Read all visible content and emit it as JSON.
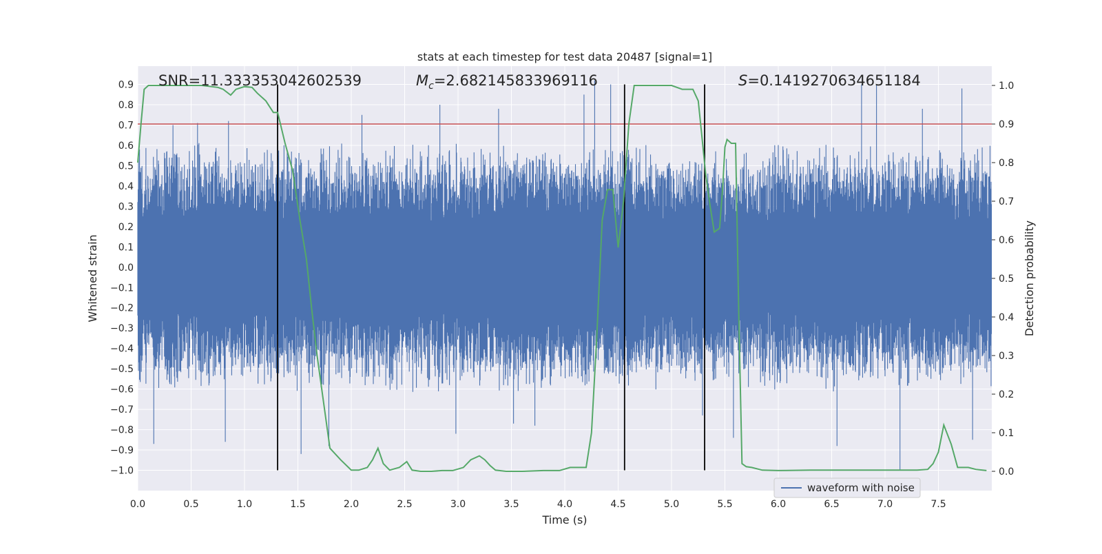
{
  "chart_data": {
    "type": "line",
    "title": "stats at each timestep for test data 20487 [signal=1]",
    "xlabel": "Time (s)",
    "ylabel_left": "Whitened strain",
    "ylabel_right": "Detection probability",
    "xlim": [
      0.0,
      8.0
    ],
    "ylim_left": [
      -1.1,
      0.99
    ],
    "ylim_right": [
      -0.05,
      1.05
    ],
    "x_ticks": [
      "0.0",
      "0.5",
      "1.0",
      "1.5",
      "2.0",
      "2.5",
      "3.0",
      "3.5",
      "4.0",
      "4.5",
      "5.0",
      "5.5",
      "6.0",
      "6.5",
      "7.0",
      "7.5"
    ],
    "y_left_ticks": [
      "0.9",
      "0.8",
      "0.7",
      "0.6",
      "0.5",
      "0.4",
      "0.3",
      "0.2",
      "0.1",
      "0.0",
      "−0.1",
      "−0.2",
      "−0.3",
      "−0.4",
      "−0.5",
      "−0.6",
      "−0.7",
      "−0.8",
      "−0.9",
      "−1.0"
    ],
    "y_right_ticks": [
      "1.0",
      "0.9",
      "0.8",
      "0.7",
      "0.6",
      "0.5",
      "0.4",
      "0.3",
      "0.2",
      "0.1",
      "0.0"
    ],
    "annotations": {
      "snr": "SNR=11.333353042602539",
      "mc_symbol": "M",
      "mc_sub": "c",
      "mc_value": "=2.682145833969116",
      "s_symbol": "S",
      "s_value": "=0.1419270634651184"
    },
    "legend": {
      "label": "waveform with noise",
      "placement": "lower right"
    },
    "grid": true,
    "colors": {
      "background": "#eaeaf2",
      "strain": "#4c72b0",
      "probability": "#55a868",
      "threshold": "#c44e52",
      "markers": "#000000",
      "grid": "#ffffff"
    },
    "threshold_probability": 0.9,
    "vertical_markers": [
      1.31,
      4.56,
      5.31
    ],
    "series": [
      {
        "name": "waveform with noise",
        "kind": "noise",
        "envelope_min": -1.0,
        "envelope_max": 0.9,
        "spikes": [
          {
            "t": 0.15,
            "v": -0.87
          },
          {
            "t": 0.33,
            "v": 0.7
          },
          {
            "t": 0.56,
            "v": 0.71
          },
          {
            "t": 0.82,
            "v": -0.86
          },
          {
            "t": 0.85,
            "v": 0.72
          },
          {
            "t": 1.31,
            "v": 0.71
          },
          {
            "t": 1.53,
            "v": -0.92
          },
          {
            "t": 1.79,
            "v": -0.88
          },
          {
            "t": 2.1,
            "v": 0.75
          },
          {
            "t": 2.83,
            "v": 0.8
          },
          {
            "t": 2.98,
            "v": -0.82
          },
          {
            "t": 3.38,
            "v": 0.78
          },
          {
            "t": 3.52,
            "v": -0.77
          },
          {
            "t": 3.72,
            "v": -0.78
          },
          {
            "t": 4.18,
            "v": 0.85
          },
          {
            "t": 4.28,
            "v": 0.92
          },
          {
            "t": 4.43,
            "v": 0.9
          },
          {
            "t": 5.29,
            "v": -0.73
          },
          {
            "t": 5.58,
            "v": -0.84
          },
          {
            "t": 6.55,
            "v": -0.88
          },
          {
            "t": 6.78,
            "v": 0.9
          },
          {
            "t": 6.92,
            "v": 0.9
          },
          {
            "t": 7.14,
            "v": -1.0
          },
          {
            "t": 7.35,
            "v": 0.78
          },
          {
            "t": 7.72,
            "v": 0.88
          },
          {
            "t": 7.82,
            "v": -0.85
          }
        ]
      },
      {
        "name": "",
        "kind": "probability",
        "x": [
          0.0,
          0.03,
          0.06,
          0.1,
          0.2,
          0.4,
          0.6,
          0.75,
          0.8,
          0.87,
          0.92,
          1.0,
          1.07,
          1.12,
          1.2,
          1.27,
          1.31,
          1.38,
          1.45,
          1.52,
          1.58,
          1.63,
          1.68,
          1.74,
          1.8,
          1.9,
          2.0,
          2.07,
          2.15,
          2.2,
          2.25,
          2.3,
          2.36,
          2.45,
          2.52,
          2.57,
          2.65,
          2.75,
          2.85,
          2.95,
          3.05,
          3.12,
          3.2,
          3.25,
          3.3,
          3.35,
          3.45,
          3.6,
          3.8,
          3.95,
          4.05,
          4.12,
          4.2,
          4.25,
          4.3,
          4.35,
          4.4,
          4.45,
          4.5,
          4.55,
          4.6,
          4.65,
          4.7,
          4.8,
          5.0,
          5.1,
          5.15,
          5.2,
          5.25,
          5.28,
          5.32,
          5.36,
          5.4,
          5.45,
          5.48,
          5.5,
          5.52,
          5.56,
          5.6,
          5.63,
          5.66,
          5.7,
          5.75,
          5.85,
          6.0,
          6.3,
          6.6,
          6.9,
          7.2,
          7.3,
          7.4,
          7.45,
          7.5,
          7.55,
          7.62,
          7.68,
          7.72,
          7.78,
          7.85,
          7.95
        ],
        "values": [
          0.8,
          0.9,
          0.99,
          1.0,
          1.0,
          1.0,
          1.0,
          0.995,
          0.99,
          0.975,
          0.99,
          0.997,
          0.995,
          0.98,
          0.96,
          0.93,
          0.93,
          0.85,
          0.78,
          0.65,
          0.55,
          0.42,
          0.3,
          0.18,
          0.06,
          0.03,
          0.003,
          0.003,
          0.01,
          0.03,
          0.06,
          0.02,
          0.003,
          0.01,
          0.025,
          0.003,
          0.0,
          0.0,
          0.002,
          0.002,
          0.01,
          0.03,
          0.04,
          0.03,
          0.015,
          0.003,
          0.0,
          0.0,
          0.002,
          0.002,
          0.01,
          0.01,
          0.01,
          0.1,
          0.35,
          0.65,
          0.73,
          0.73,
          0.58,
          0.7,
          0.9,
          1.0,
          1.0,
          1.0,
          1.0,
          0.99,
          0.99,
          0.99,
          0.96,
          0.88,
          0.77,
          0.69,
          0.62,
          0.63,
          0.74,
          0.84,
          0.86,
          0.85,
          0.85,
          0.4,
          0.02,
          0.012,
          0.01,
          0.003,
          0.002,
          0.003,
          0.003,
          0.003,
          0.003,
          0.003,
          0.005,
          0.02,
          0.05,
          0.12,
          0.07,
          0.01,
          0.01,
          0.01,
          0.005,
          0.002
        ]
      }
    ]
  }
}
